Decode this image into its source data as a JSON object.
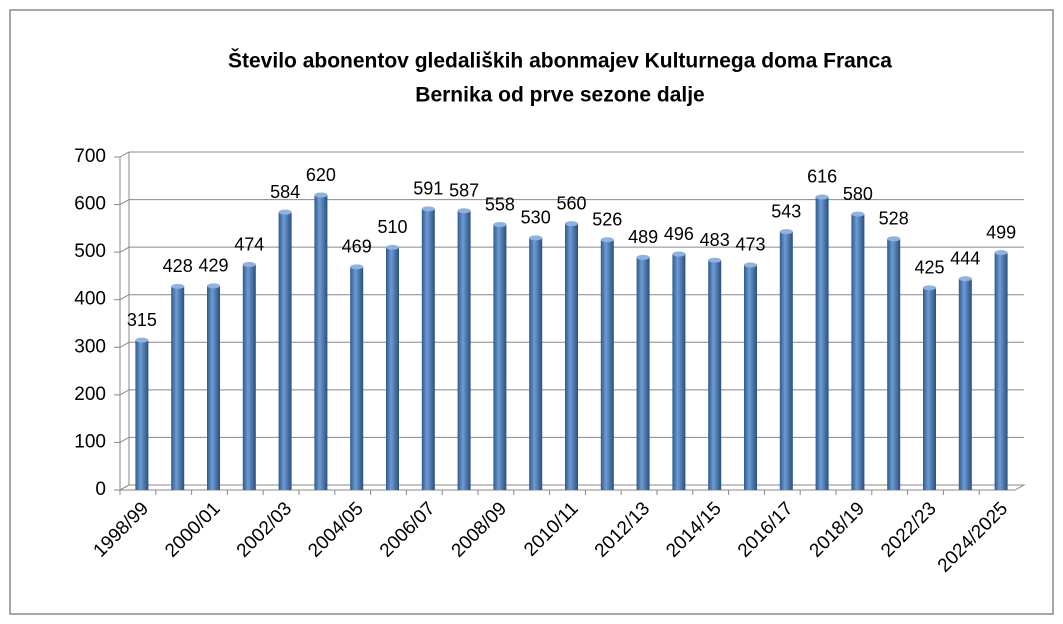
{
  "chart_data": {
    "type": "bar",
    "title": [
      "Število abonentov gledaliških abonmajev Kulturnega doma Franca",
      "Bernika od prve sezone dalje"
    ],
    "categories": [
      "1998/99",
      null,
      "2000/01",
      null,
      "2002/03",
      null,
      "2004/05",
      null,
      "2006/07",
      null,
      "2008/09",
      null,
      "2010/11",
      null,
      "2012/13",
      null,
      "2014/15",
      null,
      "2016/17",
      null,
      "2018/19",
      null,
      "2022/23",
      null,
      "2024/2025"
    ],
    "values": [
      315,
      428,
      429,
      474,
      584,
      620,
      469,
      510,
      591,
      587,
      558,
      530,
      560,
      526,
      489,
      496,
      483,
      473,
      543,
      616,
      580,
      528,
      425,
      444,
      499
    ],
    "color": "#4f81bd",
    "ylim": [
      0,
      700
    ],
    "yticks": [
      0,
      100,
      200,
      300,
      400,
      500,
      600,
      700
    ],
    "grid": true
  }
}
